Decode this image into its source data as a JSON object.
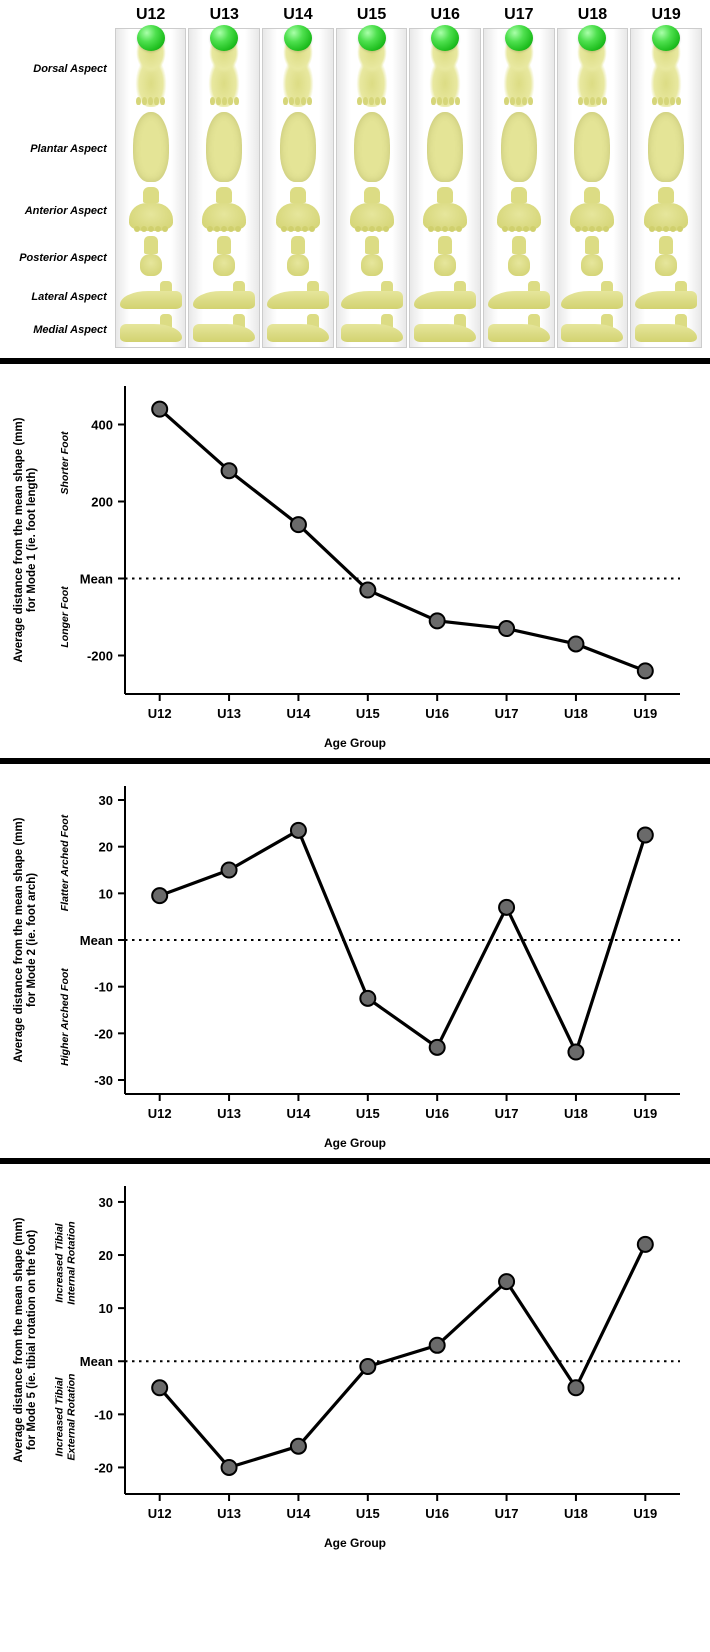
{
  "colors": {
    "sphere_highlight": "#aaffaa",
    "sphere_mid": "#4ee04e",
    "sphere_dark": "#0a8a0a",
    "foot_light": "#e6e69c",
    "foot_dark": "#d2d270",
    "column_shade": "#e8e8e8",
    "separator": "#000000",
    "background": "#ffffff",
    "marker_fill": "#6a6a6a",
    "marker_stroke": "#000000",
    "line_stroke": "#000000"
  },
  "age_groups": [
    "U12",
    "U13",
    "U14",
    "U15",
    "U16",
    "U17",
    "U18",
    "U19"
  ],
  "foot_grid": {
    "column_headers": [
      "U12",
      "U13",
      "U14",
      "U15",
      "U16",
      "U17",
      "U18",
      "U19"
    ],
    "row_headers": [
      "Dorsal Aspect",
      "Plantar Aspect",
      "Anterior Aspect",
      "Posterior Aspect",
      "Lateral Aspect",
      "Medial Aspect"
    ],
    "header_fontsize_pt": 12,
    "rowheader_fontsize_pt": 8
  },
  "charts": {
    "marker_radius": 7.5,
    "line_width": 3.2,
    "axis_width": 2,
    "tick_fontsize": 13,
    "axis_label_fontsize": 12,
    "xaxis_label": "Age Group",
    "mean_label": "Mean"
  },
  "chart1": {
    "type": "line",
    "y_label": "Average distance from the mean shape (mm)\nfor Mode 1 (ie. foot length)",
    "y_sublabel_top": "Shorter Foot",
    "y_sublabel_bottom": "Longer Foot",
    "y_ticks": [
      -200,
      0,
      200,
      400
    ],
    "ylim": [
      -300,
      500
    ],
    "mean_at": 0,
    "values": [
      440,
      280,
      140,
      -30,
      -110,
      -130,
      -170,
      -240
    ]
  },
  "chart2": {
    "type": "line",
    "y_label": "Average distance from the mean shape (mm)\nfor Mode 2 (ie. foot arch)",
    "y_sublabel_top": "Flatter Arched Foot",
    "y_sublabel_bottom": "Higher Arched Foot",
    "y_ticks": [
      -30,
      -20,
      -10,
      0,
      10,
      20,
      30
    ],
    "ylim": [
      -33,
      33
    ],
    "mean_at": 0,
    "values": [
      9.5,
      15,
      23.5,
      -12.5,
      -23,
      7,
      -24,
      22.5
    ]
  },
  "chart3": {
    "type": "line",
    "y_label": "Average distance from the mean shape (mm)\nfor Mode 5 (ie. tibial rotation on the foot)",
    "y_sublabel_top": "Increased Tibial\nInternal Rotation",
    "y_sublabel_bottom": "Increased Tibial\nExternal Rotation",
    "y_ticks": [
      -20,
      -10,
      0,
      10,
      20,
      30
    ],
    "ylim": [
      -25,
      33
    ],
    "mean_at": 0,
    "values": [
      -5,
      -20,
      -16,
      -1,
      3,
      15,
      -5,
      22
    ]
  }
}
